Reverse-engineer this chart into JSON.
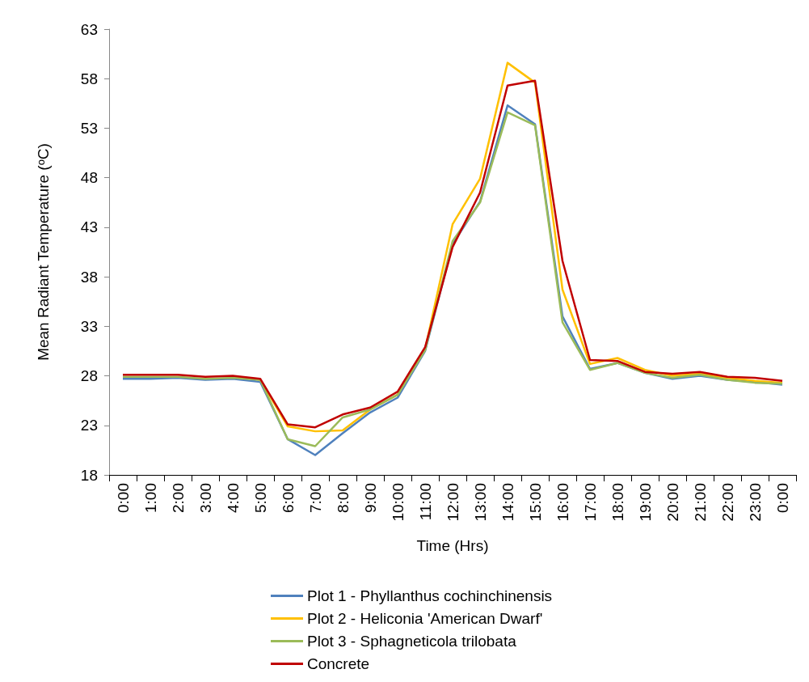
{
  "chart_data": {
    "type": "line",
    "xlabel": "Time (Hrs)",
    "ylabel": "Mean Radiant Temperature (ᵒC)",
    "categories": [
      "0:00",
      "1:00",
      "2:00",
      "3:00",
      "4:00",
      "5:00",
      "6:00",
      "7:00",
      "8:00",
      "9:00",
      "10:00",
      "11:00",
      "12:00",
      "13:00",
      "14:00",
      "15:00",
      "16:00",
      "17:00",
      "18:00",
      "19:00",
      "20:00",
      "21:00",
      "22:00",
      "23:00",
      "0:00"
    ],
    "series": [
      {
        "name": "Plot 1 - Phyllanthus cochinchinensis",
        "color": "#4f81bd",
        "values": [
          27.7,
          27.7,
          27.8,
          27.6,
          27.7,
          27.4,
          21.6,
          20.0,
          22.2,
          24.3,
          25.8,
          30.5,
          41.3,
          45.6,
          55.3,
          53.4,
          34.0,
          28.7,
          29.3,
          28.3,
          27.7,
          28.0,
          27.6,
          27.4,
          27.1
        ]
      },
      {
        "name": "Plot 2 - Heliconia 'American Dwarf'",
        "color": "#ffc000",
        "values": [
          null,
          null,
          null,
          null,
          27.9,
          27.6,
          22.9,
          22.4,
          22.5,
          24.6,
          26.1,
          30.7,
          43.3,
          47.9,
          59.6,
          57.6,
          36.7,
          29.2,
          29.8,
          28.6,
          28.0,
          28.2,
          27.8,
          27.5,
          27.3
        ]
      },
      {
        "name": "Plot 3 - Sphagneticola trilobata",
        "color": "#9bbb59",
        "values": [
          27.9,
          27.9,
          27.9,
          27.7,
          27.8,
          27.6,
          21.6,
          20.9,
          23.8,
          24.6,
          26.1,
          30.6,
          41.6,
          45.5,
          54.6,
          53.3,
          33.4,
          28.6,
          29.3,
          28.3,
          27.8,
          28.1,
          27.6,
          27.3,
          27.2
        ]
      },
      {
        "name": "Concrete",
        "color": "#c00000",
        "values": [
          28.1,
          28.1,
          28.1,
          27.9,
          28.0,
          27.7,
          23.1,
          22.8,
          24.1,
          24.8,
          26.4,
          30.9,
          41.0,
          46.5,
          57.3,
          57.8,
          39.6,
          29.6,
          29.5,
          28.4,
          28.2,
          28.4,
          27.9,
          27.8,
          27.5
        ]
      }
    ],
    "ylim": [
      18,
      63
    ],
    "yticks": [
      18,
      23,
      28,
      33,
      38,
      43,
      48,
      53,
      58,
      63
    ],
    "grid": false,
    "legend": "bottom",
    "marker": "none",
    "line_style": "solid"
  }
}
